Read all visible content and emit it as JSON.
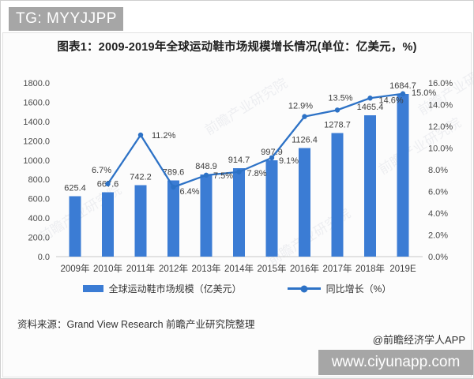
{
  "banner_top": {
    "label": "TG: MYYJJPP"
  },
  "title": "图表1：2009-2019年全球运动鞋市场规模增长情况(单位：亿美元，%)",
  "chart_data": {
    "type": "bar+line combo",
    "categories": [
      "2009年",
      "2010年",
      "2011年",
      "2012年",
      "2013年",
      "2014年",
      "2015年",
      "2016年",
      "2017年",
      "2018年",
      "2019E"
    ],
    "series": [
      {
        "name": "全球运动鞋市场规模（亿美元）",
        "type": "bar",
        "color": "#3b7cd4",
        "values": [
          625.4,
          667.6,
          742.2,
          789.6,
          848.9,
          914.7,
          997.9,
          1126.4,
          1278.7,
          1465.4,
          1684.7
        ],
        "labels": [
          "625.4",
          "667.6",
          "742.2",
          "789.6",
          "848.9",
          "914.7",
          "997.9",
          "1126.4",
          "1278.7",
          "1465.4",
          "1684.7"
        ]
      },
      {
        "name": "同比增长（%）",
        "type": "line",
        "color": "#2d72c6",
        "values": [
          null,
          6.7,
          11.2,
          6.4,
          7.5,
          7.8,
          9.1,
          12.9,
          13.5,
          14.6,
          15.0
        ],
        "labels": [
          "",
          "6.7%",
          "11.2%",
          "6.4%",
          "7.5%",
          "7.8%",
          "9.1%",
          "12.9%",
          "13.5%",
          "14.6%",
          "15.0%"
        ],
        "label_offsets": [
          null,
          {
            "dx": -8,
            "dy": -14,
            "anchor": "middle"
          },
          {
            "dx": 14,
            "dy": 4,
            "anchor": "start"
          },
          {
            "dx": 8,
            "dy": 9,
            "anchor": "start"
          },
          {
            "dx": 9,
            "dy": 4,
            "anchor": "start"
          },
          {
            "dx": 10,
            "dy": 5,
            "anchor": "start"
          },
          {
            "dx": 9,
            "dy": 7,
            "anchor": "start"
          },
          {
            "dx": -5,
            "dy": -10,
            "anchor": "middle"
          },
          {
            "dx": 4,
            "dy": -12,
            "anchor": "middle"
          },
          {
            "dx": 11,
            "dy": 6,
            "anchor": "start"
          },
          {
            "dx": 11,
            "dy": 2,
            "anchor": "start"
          }
        ]
      }
    ],
    "left_axis": {
      "ticks": [
        "1800.0",
        "1600.0",
        "1400.0",
        "1200.0",
        "1000.0",
        "800.0",
        "600.0",
        "400.0",
        "200.0",
        "0.0"
      ],
      "min": 0,
      "max": 1800
    },
    "right_axis": {
      "ticks": [
        "16.0%",
        "14.0%",
        "12.0%",
        "10.0%",
        "8.0%",
        "6.0%",
        "4.0%",
        "2.0%",
        "0.0%"
      ],
      "min": 0,
      "max": 16
    },
    "grid": false,
    "legend_position": "bottom"
  },
  "source": "资料来源：Grand View Research 前瞻产业研究院整理",
  "credit": "@前瞻经济学人APP",
  "banner_bottom": {
    "label": "www.ciyunapp.com"
  },
  "watermark": {
    "text": "前瞻产业研究院"
  },
  "colors": {
    "banner_bg": "#a6a6a6",
    "bar": "#3b7cd4",
    "line": "#2d72c6",
    "axis_text": "#4a4a4a",
    "label_text": "#3d3d3d",
    "title_text": "#1f1f1f"
  }
}
